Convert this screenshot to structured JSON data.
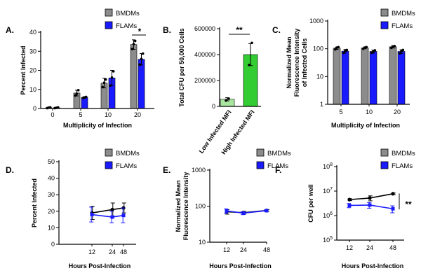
{
  "colors": {
    "bmdm": "#8c8c8c",
    "flam": "#1a1aff",
    "low": "#a8e6a0",
    "high": "#33cc33",
    "line_bmdm": "#000000"
  },
  "legend": {
    "bmdm": "BMDMs",
    "flam": "FLAMs"
  },
  "chart_data": [
    {
      "panel": "A.",
      "type": "bar",
      "categories": [
        "0",
        "5",
        "10",
        "20"
      ],
      "xlabel": "Multiplicity of Infection",
      "ylabel": "Percent Infected",
      "ylim": [
        0,
        40
      ],
      "yticks": [
        0,
        10,
        20,
        30,
        40
      ],
      "series": [
        {
          "name": "BMDMs",
          "values": [
            0.4,
            8.1,
            13.3,
            33.5
          ],
          "errors": [
            0.3,
            1.5,
            2.5,
            2.5
          ],
          "points": [
            [
              0.2,
              0.5,
              0.6
            ],
            [
              6.8,
              7.8,
              9.6
            ],
            [
              11.2,
              13.5,
              15.2
            ],
            [
              31.2,
              33.8,
              35.4
            ]
          ]
        },
        {
          "name": "FLAMs",
          "values": [
            0.4,
            5.8,
            16.0,
            25.8
          ],
          "errors": [
            0.3,
            0.4,
            4.0,
            3.0
          ],
          "points": [
            [
              0.2,
              0.4,
              0.6
            ],
            [
              5.5,
              5.8,
              6.1
            ],
            [
              12.0,
              16.2,
              19.5
            ],
            [
              23.0,
              26.0,
              28.8
            ]
          ]
        }
      ],
      "annotations": [
        {
          "text": "*",
          "between": "BMDMs vs FLAMs at MOI 20"
        }
      ]
    },
    {
      "panel": "B.",
      "type": "bar",
      "categories": [
        "Low Infected MFI",
        "High Infected MFI"
      ],
      "xlabel": "",
      "ylabel": "Total CFU per 50,000 Cells",
      "ylim": [
        0,
        600000
      ],
      "ytick_labels": [
        "0",
        "200000",
        "400000",
        "600000"
      ],
      "yticks": [
        0,
        200000,
        400000,
        600000
      ],
      "series": [
        {
          "name": "CFU",
          "values": [
            55000,
            400000
          ],
          "errors": [
            12000,
            85000
          ],
          "points": [
            [
              45000,
              60000
            ],
            [
              320000,
              490000
            ]
          ]
        }
      ],
      "annotations": [
        {
          "text": "**",
          "between": "Low vs High Infected MFI"
        }
      ]
    },
    {
      "panel": "C.",
      "type": "bar",
      "yscale": "log",
      "categories": [
        "5",
        "10",
        "20"
      ],
      "xlabel": "Multiplicity of Infection",
      "ylabel": "Normalized Mean Fluorescence Intensity of Infected Cells",
      "ylabel_lines": [
        "Normalized Mean",
        "Fluorescence Intensity",
        "of Infected Cells"
      ],
      "ylim": [
        1,
        1000
      ],
      "yticks": [
        1,
        10,
        100,
        1000
      ],
      "ytick_labels": [
        "1",
        "10",
        "100",
        "1000"
      ],
      "series": [
        {
          "name": "BMDMs",
          "values": [
            105,
            108,
            118
          ],
          "errors": [
            10,
            8,
            12
          ],
          "points": [
            [
              95,
              110,
              115
            ],
            [
              100,
              110,
              115
            ],
            [
              108,
              120,
              125
            ]
          ]
        },
        {
          "name": "FLAMs",
          "values": [
            82,
            80,
            80
          ],
          "errors": [
            12,
            10,
            12
          ],
          "points": [
            [
              70,
              85,
              90
            ],
            [
              72,
              80,
              88
            ],
            [
              68,
              82,
              90
            ]
          ]
        }
      ]
    },
    {
      "panel": "D.",
      "type": "line",
      "x": [
        12,
        24,
        48
      ],
      "xtick_labels": [
        "12",
        "24",
        "48"
      ],
      "xlabel": "Hours Post-Infection",
      "ylabel": "Percent Infected",
      "ylim": [
        0,
        50
      ],
      "yticks": [
        0,
        10,
        20,
        30,
        40,
        50
      ],
      "series": [
        {
          "name": "BMDMs",
          "values": [
            19,
            21,
            22
          ],
          "errors": [
            4,
            4,
            3
          ]
        },
        {
          "name": "FLAMs",
          "values": [
            18,
            16.5,
            17.5
          ],
          "errors": [
            4.5,
            3.5,
            4.5
          ]
        }
      ]
    },
    {
      "panel": "E.",
      "type": "line",
      "yscale": "log",
      "x": [
        12,
        24,
        48
      ],
      "xtick_labels": [
        "12",
        "24",
        "48"
      ],
      "xlabel": "Hours Post-Infection",
      "ylabel": "Normalized Mean Fluorescence Intensity",
      "ylabel_lines": [
        "Normalized Mean",
        "Fluorescence Intensity"
      ],
      "ylim": [
        10,
        1000
      ],
      "yticks": [
        10,
        100,
        1000
      ],
      "ytick_labels": [
        "10",
        "100",
        "1000"
      ],
      "series": [
        {
          "name": "BMDMs",
          "values": [
            70,
            66,
            76
          ],
          "errors": [
            10,
            6,
            4
          ]
        },
        {
          "name": "FLAMs",
          "values": [
            74,
            64,
            75
          ],
          "errors": [
            10,
            6,
            4
          ]
        }
      ]
    },
    {
      "panel": "F.",
      "type": "line",
      "yscale": "log",
      "x": [
        12,
        24,
        48
      ],
      "xtick_labels": [
        "12",
        "24",
        "48"
      ],
      "xlabel": "Hours Post-Infection",
      "ylabel": "CFU per well",
      "ylim": [
        100000,
        100000000
      ],
      "yticks": [
        100000,
        1000000,
        10000000,
        100000000
      ],
      "ytick_base": "10",
      "ytick_exps": [
        "5",
        "6",
        "7",
        "8"
      ],
      "series": [
        {
          "name": "BMDMs",
          "values": [
            4500000,
            5200000,
            7800000
          ],
          "errors": [
            400000,
            1200000,
            600000
          ]
        },
        {
          "name": "FLAMs",
          "values": [
            2600000,
            2700000,
            1900000
          ],
          "errors": [
            500000,
            700000,
            600000
          ]
        }
      ],
      "annotations": [
        {
          "text": "**",
          "between": "BMDMs vs FLAMs"
        }
      ]
    }
  ]
}
